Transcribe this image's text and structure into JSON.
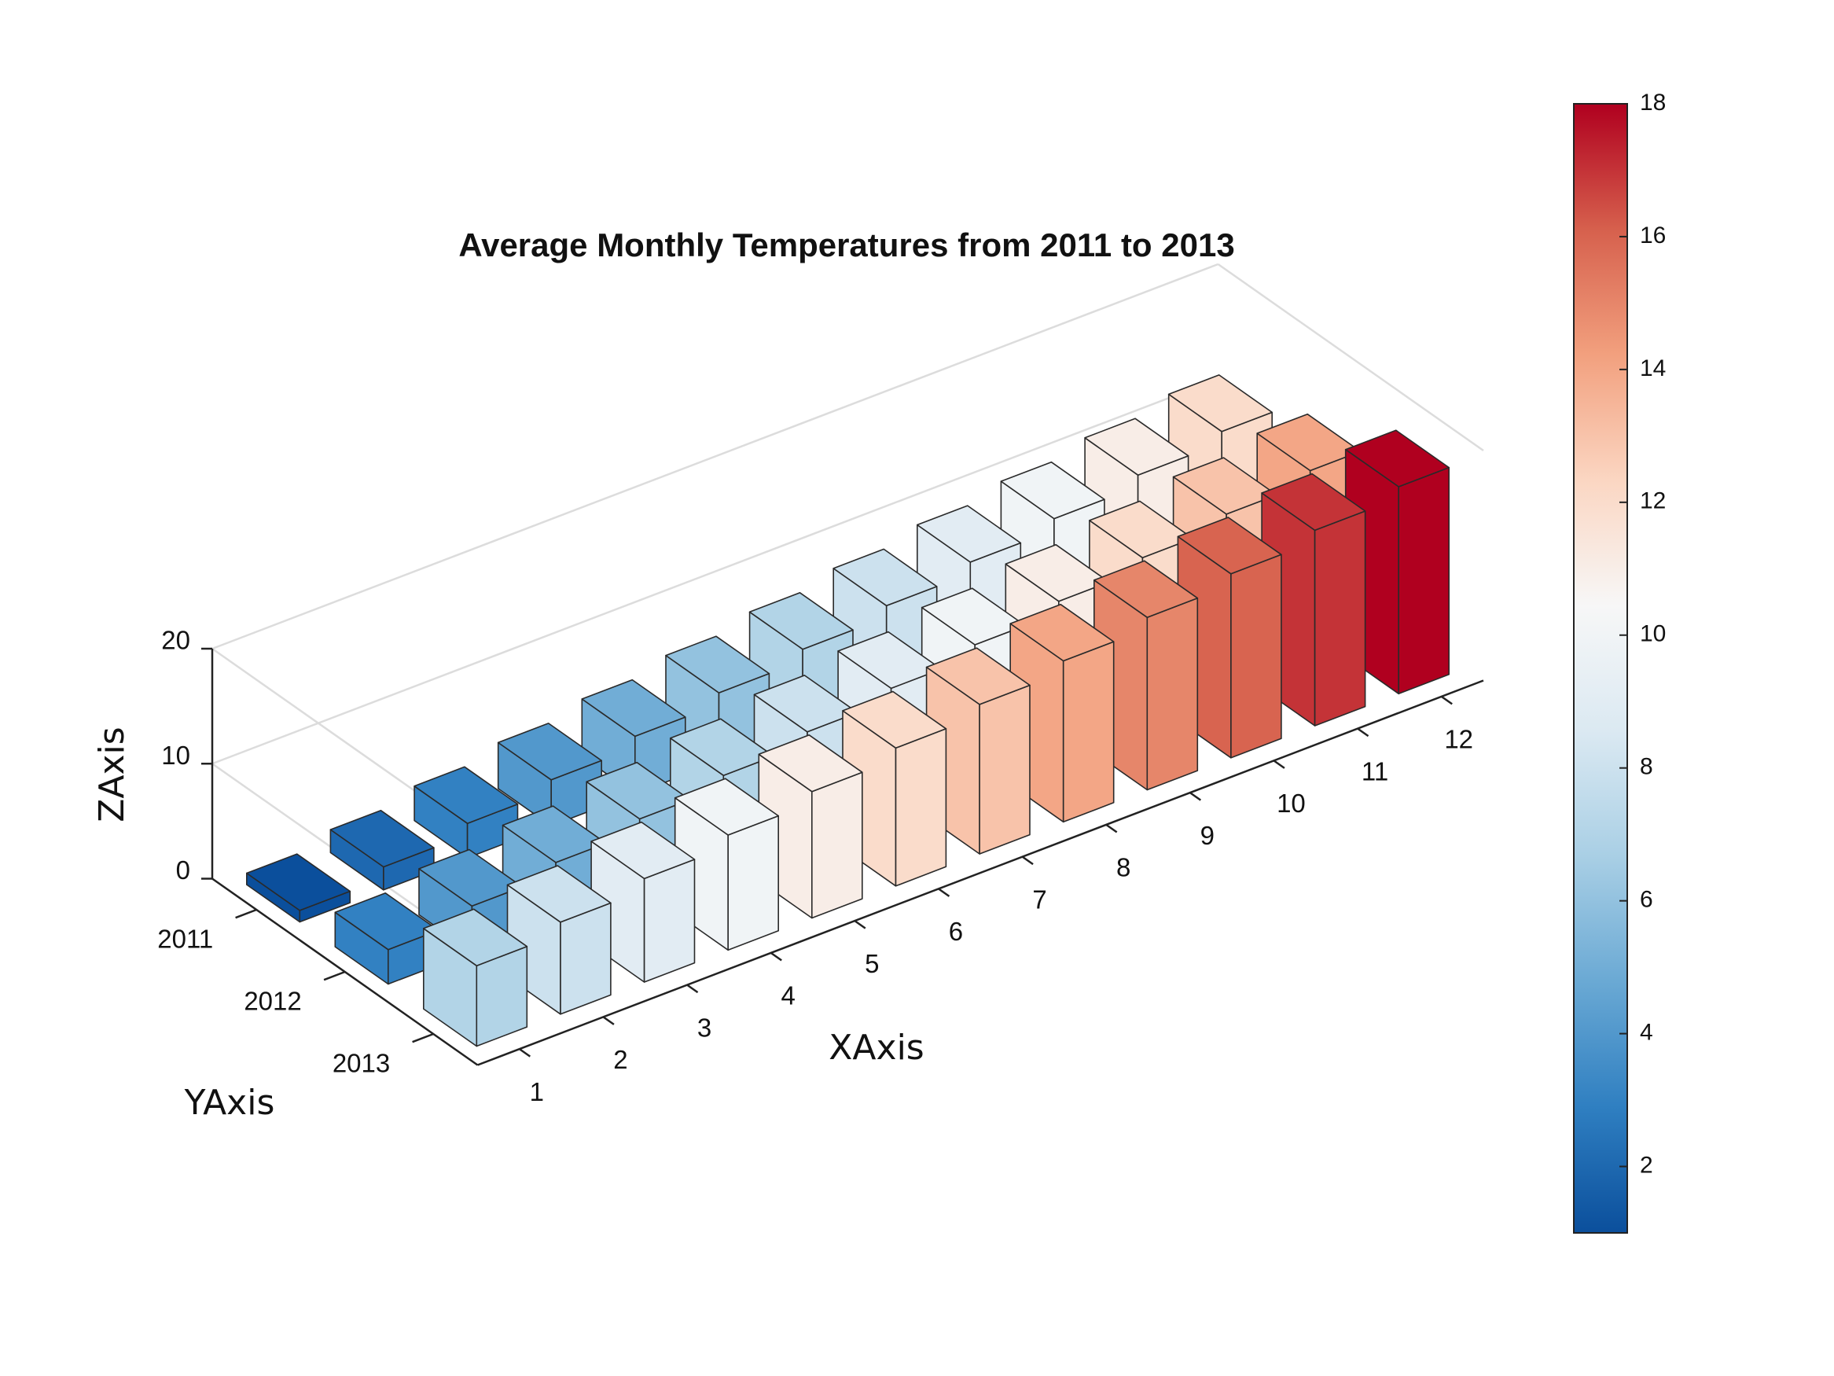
{
  "chart_data": {
    "type": "bar3",
    "title": "Average Monthly Temperatures from 2011 to 2013",
    "xlabel": "XAxis",
    "ylabel": "YAxis",
    "zlabel": "ZAxis",
    "x": [
      1,
      2,
      3,
      4,
      5,
      6,
      7,
      8,
      9,
      10,
      11,
      12
    ],
    "xticks": [
      1,
      2,
      3,
      4,
      5,
      6,
      7,
      8,
      9,
      10,
      11,
      12
    ],
    "series": [
      {
        "name": "2011",
        "values": [
          1,
          2,
          3,
          4,
          5,
          6,
          7,
          8,
          9,
          10,
          11,
          12
        ]
      },
      {
        "name": "2012",
        "values": [
          3,
          4,
          5,
          6,
          7,
          8,
          9,
          10,
          11,
          12,
          13,
          14
        ]
      },
      {
        "name": "2013",
        "values": [
          7,
          8,
          9,
          10,
          11,
          12,
          13,
          14,
          15,
          16,
          17,
          18
        ]
      }
    ],
    "zlim": [
      0,
      20
    ],
    "zticks": [
      0,
      10,
      20
    ],
    "grid": true,
    "colormap": [
      "#0b4f9c",
      "#2f7fc1",
      "#6aa9d4",
      "#a9cfe5",
      "#dbe9f2",
      "#f7f7f7",
      "#fbd6c2",
      "#f2a07e",
      "#d6604d",
      "#b0001f"
    ],
    "clim": [
      1,
      18
    ],
    "cticks": [
      2,
      4,
      6,
      8,
      10,
      12,
      14,
      16,
      18
    ]
  }
}
